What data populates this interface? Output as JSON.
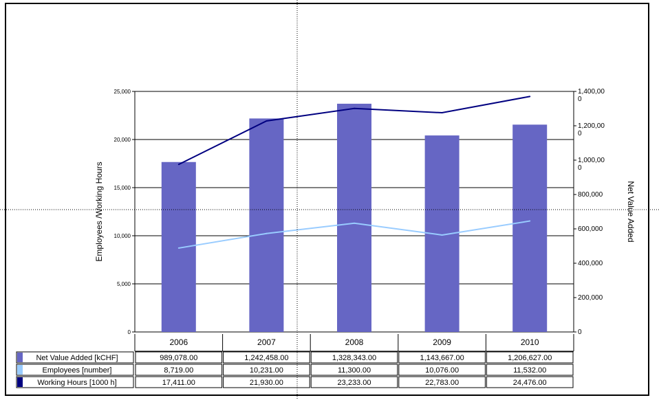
{
  "chart_data": {
    "type": "bar",
    "categories": [
      "2006",
      "2007",
      "2008",
      "2009",
      "2010"
    ],
    "series": [
      {
        "name": "Net Value Added [kCHF]",
        "type": "bar",
        "axis": "right",
        "color": "#6666c4",
        "values": [
          989078.0,
          1242458.0,
          1328343.0,
          1143667.0,
          1206627.0
        ],
        "labels": [
          "989,078.00",
          "1,242,458.00",
          "1,328,343.00",
          "1,143,667.00",
          "1,206,627.00"
        ]
      },
      {
        "name": "Employees [number]",
        "type": "line",
        "axis": "left",
        "color": "#99ccff",
        "values": [
          8719.0,
          10231.0,
          11300.0,
          10076.0,
          11532.0
        ],
        "labels": [
          "8,719.00",
          "10,231.00",
          "11,300.00",
          "10,076.00",
          "11,532.00"
        ]
      },
      {
        "name": "Working Hours [1000 h]",
        "type": "line",
        "axis": "left",
        "color": "#000080",
        "values": [
          17411.0,
          21930.0,
          23233.0,
          22783.0,
          24476.0
        ],
        "labels": [
          "17,411.00",
          "21,930.00",
          "23,233.00",
          "22,783.00",
          "24,476.00"
        ]
      }
    ],
    "ylabel": "Employees /Working Hours",
    "y2label": "Net Value Added",
    "ylim": [
      0,
      25000
    ],
    "y2lim": [
      0,
      1400000
    ],
    "yticks": [
      "0",
      "5,000",
      "10,000",
      "15,000",
      "20,000",
      "25,000"
    ],
    "y2ticks": [
      "0",
      "200,000",
      "400,000",
      "600,000",
      "800,000",
      "1,000,00\n0",
      "1,200,00\n0",
      "1,400,00\n0"
    ],
    "grid": true,
    "legend": "data-table"
  }
}
